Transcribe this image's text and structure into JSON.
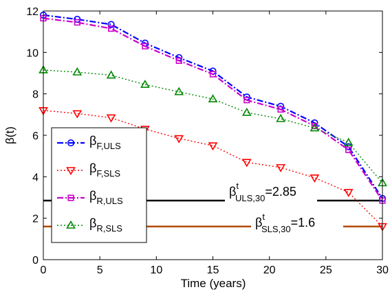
{
  "chart_data": {
    "type": "line",
    "xlabel": "Time (years)",
    "ylabel": "β(t)",
    "xlim": [
      0,
      30
    ],
    "ylim": [
      0,
      12
    ],
    "xticks": [
      0,
      5,
      10,
      15,
      20,
      25,
      30
    ],
    "yticks": [
      0,
      2,
      4,
      6,
      8,
      10,
      12
    ],
    "grid": false,
    "legend_position": "bottom-left",
    "x": [
      0,
      3,
      6,
      9,
      12,
      15,
      18,
      21,
      24,
      27,
      30
    ],
    "series": [
      {
        "name_base": "β",
        "name_sub": "F,ULS",
        "color": "#0000ff",
        "line": "dashdot",
        "marker": "circle",
        "values": [
          11.8,
          11.6,
          11.35,
          10.45,
          9.75,
          9.1,
          7.85,
          7.4,
          6.6,
          5.45,
          2.95
        ]
      },
      {
        "name_base": "β",
        "name_sub": "F,SLS",
        "color": "#ff0000",
        "line": "dotted",
        "marker": "triangle-down",
        "values": [
          7.2,
          7.05,
          6.85,
          6.3,
          5.85,
          5.5,
          4.7,
          4.45,
          3.95,
          3.25,
          1.6
        ]
      },
      {
        "name_base": "β",
        "name_sub": "R,ULS",
        "color": "#cc00cc",
        "line": "dashdot",
        "marker": "square",
        "values": [
          11.65,
          11.45,
          11.15,
          10.3,
          9.6,
          8.95,
          7.7,
          7.25,
          6.45,
          5.3,
          2.85
        ]
      },
      {
        "name_base": "β",
        "name_sub": "R,SLS",
        "color": "#008800",
        "line": "dotted",
        "marker": "triangle-up",
        "values": [
          9.15,
          9.05,
          8.9,
          8.45,
          8.1,
          7.75,
          7.1,
          6.8,
          6.35,
          5.65,
          3.7
        ]
      }
    ],
    "thresholds": [
      {
        "value": 2.85,
        "color": "#000000",
        "label_base": "β",
        "label_sup": "t",
        "label_sub": "ULS,30",
        "label_rest": "=2.85"
      },
      {
        "value": 1.6,
        "color": "#b24a00",
        "label_base": "β",
        "label_sup": "t",
        "label_sub": "SLS,30",
        "label_rest": "=1.6"
      }
    ]
  }
}
